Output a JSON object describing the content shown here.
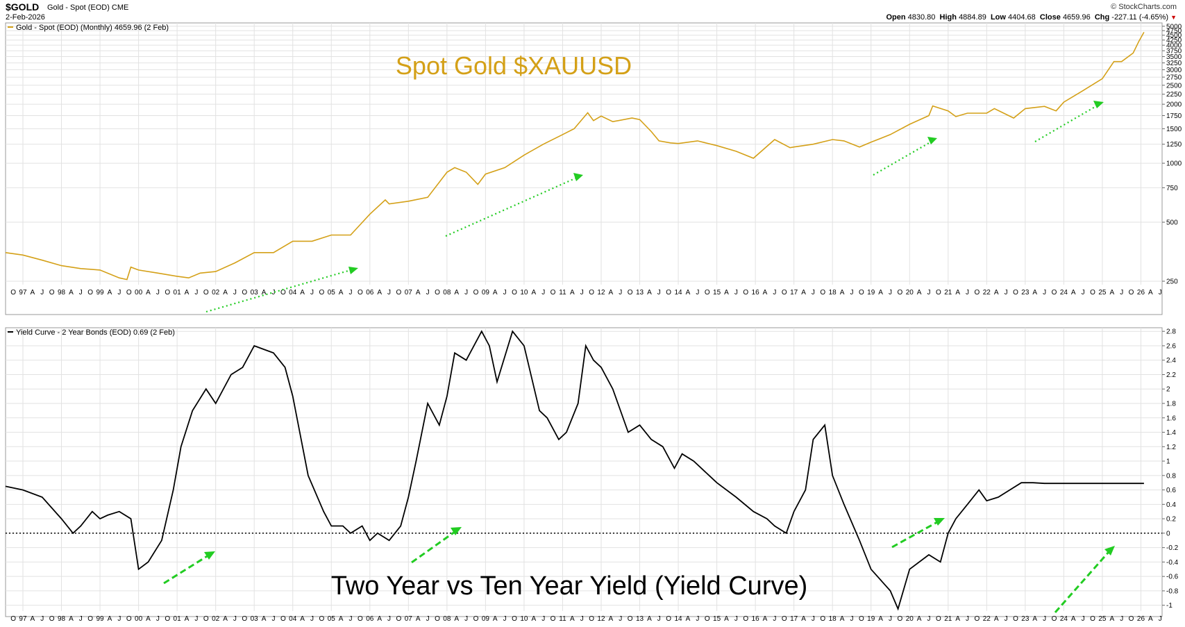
{
  "header": {
    "symbol": "$GOLD",
    "symbol_description": "Gold - Spot (EOD) CME",
    "date": "2-Feb-2026",
    "copyright": "© StockCharts.com",
    "open_label": "Open",
    "open": "4830.80",
    "high_label": "High",
    "high": "4884.89",
    "low_label": "Low",
    "low": "4404.68",
    "close_label": "Close",
    "close": "4659.96",
    "chg_label": "Chg",
    "chg": "-227.11 (-4.65%)",
    "chg_marker": "▼"
  },
  "colors": {
    "gold": "#D4A017",
    "yield": "#000000",
    "arrow": "#22CC22",
    "grid": "#E2E2E2"
  },
  "chart_data": [
    {
      "type": "line",
      "legend": "Gold - Spot (EOD) (Monthly) 4659.96 (2 Feb)",
      "annotation": "Spot Gold $XAUUSD",
      "y_scale": "log",
      "ylim": [
        240,
        5200
      ],
      "y_ticks": [
        250,
        500,
        750,
        1000,
        1250,
        1500,
        1750,
        2000,
        2250,
        2500,
        2750,
        3000,
        3250,
        3500,
        3750,
        4000,
        4250,
        4500,
        4750,
        5000
      ],
      "x_range": [
        1996.55,
        2026.55
      ],
      "x_year_labels": [
        "97",
        "98",
        "99",
        "00",
        "01",
        "02",
        "03",
        "04",
        "05",
        "06",
        "07",
        "08",
        "09",
        "10",
        "11",
        "12",
        "13",
        "14",
        "15",
        "16",
        "17",
        "18",
        "19",
        "20",
        "21",
        "22",
        "23",
        "24",
        "25",
        "26"
      ],
      "x_month_labels": [
        "A",
        "J",
        "O"
      ],
      "series": [
        {
          "x": [
            1996.55,
            1997.0,
            1997.5,
            1998.0,
            1998.5,
            1999.0,
            1999.5,
            1999.7,
            1999.8,
            2000.0,
            2000.5,
            2001.0,
            2001.3,
            2001.6,
            2002.0,
            2002.5,
            2003.0,
            2003.5,
            2004.0,
            2004.5,
            2005.0,
            2005.5,
            2006.0,
            2006.4,
            2006.5,
            2007.0,
            2007.5,
            2008.0,
            2008.2,
            2008.5,
            2008.8,
            2009.0,
            2009.5,
            2010.0,
            2010.5,
            2011.0,
            2011.3,
            2011.65,
            2011.8,
            2012.0,
            2012.3,
            2012.8,
            2013.0,
            2013.3,
            2013.5,
            2013.8,
            2014.0,
            2014.5,
            2015.0,
            2015.5,
            2015.95,
            2016.5,
            2016.9,
            2017.0,
            2017.5,
            2018.0,
            2018.3,
            2018.7,
            2019.0,
            2019.5,
            2020.0,
            2020.5,
            2020.6,
            2021.0,
            2021.2,
            2021.5,
            2022.0,
            2022.2,
            2022.7,
            2023.0,
            2023.5,
            2023.8,
            2024.0,
            2024.5,
            2025.0,
            2025.3,
            2025.5,
            2025.8,
            2025.95,
            2026.08
          ],
          "y": [
            350,
            340,
            320,
            300,
            290,
            285,
            260,
            255,
            295,
            285,
            275,
            265,
            260,
            275,
            280,
            310,
            350,
            350,
            400,
            400,
            430,
            430,
            550,
            650,
            620,
            640,
            670,
            900,
            950,
            900,
            780,
            880,
            950,
            1100,
            1250,
            1400,
            1500,
            1810,
            1650,
            1740,
            1630,
            1700,
            1670,
            1450,
            1300,
            1270,
            1260,
            1300,
            1230,
            1150,
            1060,
            1320,
            1200,
            1210,
            1250,
            1320,
            1300,
            1210,
            1280,
            1400,
            1580,
            1750,
            1960,
            1850,
            1730,
            1800,
            1800,
            1900,
            1700,
            1900,
            1950,
            1850,
            2050,
            2350,
            2700,
            3300,
            3300,
            3650,
            4200,
            4660
          ]
        }
      ]
    },
    {
      "type": "line",
      "legend": "Yield Curve - 2 Year Bonds (EOD) 0.69 (2 Feb)",
      "annotation": "Two Year vs Ten Year Yield (Yield Curve)",
      "ylim": [
        -1.08,
        2.85
      ],
      "y_ticks": [
        -1.0,
        -0.8,
        -0.6,
        -0.4,
        -0.2,
        0.0,
        0.2,
        0.4,
        0.6,
        0.8,
        1.0,
        1.2,
        1.4,
        1.6,
        1.8,
        2.0,
        2.2,
        2.4,
        2.6,
        2.8
      ],
      "x_range": [
        1996.55,
        2026.55
      ],
      "x_year_labels": [
        "97",
        "98",
        "99",
        "00",
        "01",
        "02",
        "03",
        "04",
        "05",
        "06",
        "07",
        "08",
        "09",
        "10",
        "11",
        "12",
        "13",
        "14",
        "15",
        "16",
        "17",
        "18",
        "19",
        "20",
        "21",
        "22",
        "23",
        "24",
        "25",
        "26"
      ],
      "x_month_labels": [
        "A",
        "J",
        "O"
      ],
      "reference_line": 0,
      "series": [
        {
          "x": [
            1996.55,
            1997.0,
            1997.5,
            1998.0,
            1998.3,
            1998.5,
            1998.8,
            1999.0,
            1999.2,
            1999.5,
            1999.8,
            2000.0,
            2000.25,
            2000.6,
            2000.9,
            2001.1,
            2001.4,
            2001.75,
            2002.0,
            2002.4,
            2002.7,
            2003.0,
            2003.5,
            2003.8,
            2004.0,
            2004.4,
            2004.8,
            2005.0,
            2005.3,
            2005.5,
            2005.8,
            2006.0,
            2006.2,
            2006.5,
            2006.8,
            2007.0,
            2007.2,
            2007.5,
            2007.8,
            2008.0,
            2008.2,
            2008.5,
            2008.9,
            2009.1,
            2009.3,
            2009.7,
            2010.0,
            2010.4,
            2010.6,
            2010.9,
            2011.1,
            2011.4,
            2011.6,
            2011.8,
            2012.0,
            2012.3,
            2012.7,
            2013.0,
            2013.3,
            2013.6,
            2013.9,
            2014.1,
            2014.4,
            2014.8,
            2015.0,
            2015.5,
            2015.95,
            2016.3,
            2016.5,
            2016.8,
            2017.0,
            2017.3,
            2017.5,
            2017.8,
            2018.0,
            2018.3,
            2018.7,
            2019.0,
            2019.5,
            2019.7,
            2020.0,
            2020.5,
            2020.8,
            2021.0,
            2021.2,
            2021.5,
            2021.8,
            2022.0,
            2022.3,
            2022.6,
            2022.9,
            2023.2,
            2023.5,
            2023.65,
            2023.8,
            2024.0,
            2024.5,
            2024.8,
            2025.0,
            2025.3,
            2025.5,
            2025.8,
            2026.0,
            2026.08
          ],
          "y": [
            0.65,
            0.6,
            0.5,
            0.2,
            0.0,
            0.1,
            0.3,
            0.2,
            0.25,
            0.3,
            0.2,
            -0.5,
            -0.4,
            -0.1,
            0.6,
            1.2,
            1.7,
            2.0,
            1.8,
            2.2,
            2.3,
            2.6,
            2.5,
            2.3,
            1.9,
            0.8,
            0.3,
            0.1,
            0.1,
            0.0,
            0.1,
            -0.1,
            0.0,
            -0.1,
            0.1,
            0.5,
            1.0,
            1.8,
            1.5,
            1.9,
            2.5,
            2.4,
            2.8,
            2.6,
            2.1,
            2.8,
            2.6,
            1.7,
            1.6,
            1.3,
            1.4,
            1.8,
            2.6,
            2.4,
            2.3,
            2.0,
            1.4,
            1.5,
            1.3,
            1.2,
            0.9,
            1.1,
            1.0,
            0.8,
            0.7,
            0.5,
            0.3,
            0.2,
            0.1,
            0.0,
            0.3,
            0.6,
            1.3,
            1.5,
            0.8,
            0.4,
            -0.1,
            -0.5,
            -0.8,
            -1.05,
            -0.5,
            -0.3,
            -0.4,
            0.0,
            0.2,
            0.4,
            0.6,
            0.45,
            0.5,
            0.6,
            0.7,
            0.7,
            0.69,
            0.69,
            0.69,
            0.69,
            0.69,
            0.69,
            0.69,
            0.69,
            0.69,
            0.69,
            0.69,
            0.69
          ]
        }
      ]
    }
  ]
}
